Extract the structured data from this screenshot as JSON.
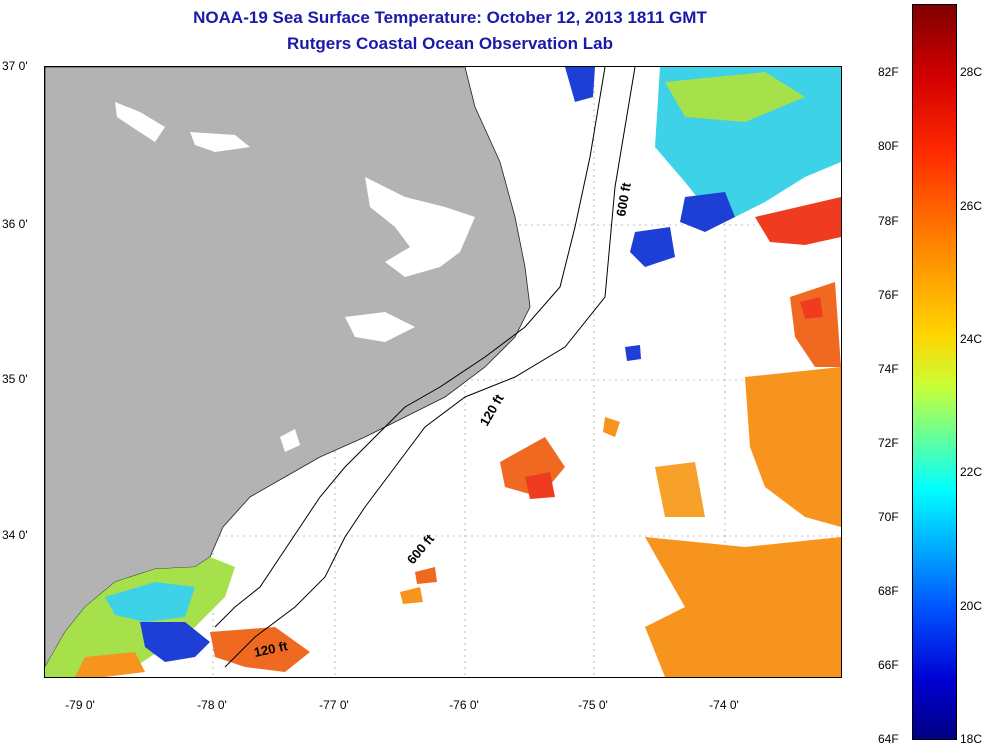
{
  "title": {
    "line1": "NOAA-19 Sea Surface Temperature:  October 12, 2013 1811 GMT",
    "line2": "Rutgers Coastal Ocean Observation Lab"
  },
  "axes": {
    "x_ticks": [
      "-79 0'",
      "-78 0'",
      "-77 0'",
      "-76 0'",
      "-75 0'",
      "-74 0'"
    ],
    "y_ticks": [
      "37 0'",
      "36 0'",
      "35 0'",
      "34 0'"
    ]
  },
  "contour_labels": {
    "label_600_north": "600 ft",
    "label_120_mid": "120 ft",
    "label_600_south": "600 ft",
    "label_120_south": "120 ft"
  },
  "colorbar": {
    "fahrenheit": [
      "82F",
      "80F",
      "78F",
      "76F",
      "74F",
      "72F",
      "70F",
      "68F",
      "66F",
      "64F"
    ],
    "celsius": [
      "28C",
      "26C",
      "24C",
      "22C",
      "20C",
      "18C"
    ]
  },
  "colors": {
    "land": "#b3b3b3",
    "title": "#1a1aa8",
    "warm": "#f7941d",
    "hot": "#ef3b1f",
    "cool": "#3dd2e8",
    "cold": "#1d3fd6",
    "green": "#a6e04a"
  }
}
